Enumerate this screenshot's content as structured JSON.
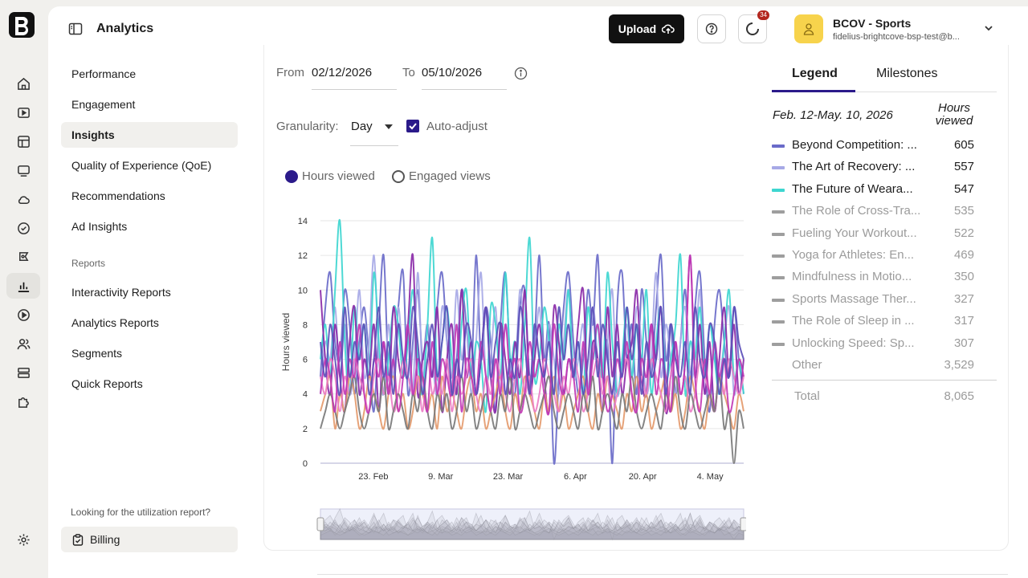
{
  "header": {
    "title": "Analytics",
    "upload_label": "Upload",
    "notification_count": "34",
    "account_name": "BCOV - Sports",
    "account_email": "fidelius-brightcove-bsp-test@b..."
  },
  "subnav": {
    "items": [
      {
        "label": "Performance"
      },
      {
        "label": "Engagement"
      },
      {
        "label": "Insights"
      },
      {
        "label": "Quality of Experience (QoE)"
      },
      {
        "label": "Recommendations"
      },
      {
        "label": "Ad Insights"
      }
    ],
    "reports_heading": "Reports",
    "report_items": [
      {
        "label": "Interactivity Reports"
      },
      {
        "label": "Analytics Reports"
      },
      {
        "label": "Segments"
      },
      {
        "label": "Quick Reports"
      }
    ],
    "utilization_text": "Looking for the utilization report?",
    "billing_label": "Billing"
  },
  "filters": {
    "from_label": "From",
    "from_value": "02/12/2026",
    "to_label": "To",
    "to_value": "05/10/2026",
    "granularity_label": "Granularity:",
    "granularity_value": "Day",
    "auto_adjust_label": "Auto-adjust",
    "auto_adjust_checked": true,
    "metric_options": [
      "Hours viewed",
      "Engaged views"
    ],
    "metric_selected": "Hours viewed"
  },
  "legend_panel": {
    "tabs": [
      "Legend",
      "Milestones"
    ],
    "period": "Feb. 12-May. 10, 2026",
    "column_header": "Hours viewed",
    "rows": [
      {
        "name": "Beyond Competition: The Mindset of Elite Athletes",
        "display": "Beyond Competition: ...",
        "value": "605",
        "color": "#6a6bc9",
        "active": true
      },
      {
        "name": "The Art of Recovery",
        "display": "The Art of Recovery: ...",
        "value": "557",
        "color": "#a7a9e6",
        "active": true
      },
      {
        "name": "The Future of Wearables",
        "display": "The Future of Weara...",
        "value": "547",
        "color": "#3ed6d0",
        "active": true
      },
      {
        "name": "The Role of Cross-Training",
        "display": "The Role of Cross-Tra...",
        "value": "535",
        "color": "#9e9e9e",
        "active": false
      },
      {
        "name": "Fueling Your Workout",
        "display": "Fueling Your Workout...",
        "value": "522",
        "color": "#9e9e9e",
        "active": false
      },
      {
        "name": "Yoga for Athletes: Enhancing Flexibility",
        "display": "Yoga for Athletes: En...",
        "value": "469",
        "color": "#9e9e9e",
        "active": false
      },
      {
        "name": "Mindfulness in Motion",
        "display": "Mindfulness in Motio...",
        "value": "350",
        "color": "#9e9e9e",
        "active": false
      },
      {
        "name": "Sports Massage Therapy",
        "display": "Sports Massage Ther...",
        "value": "327",
        "color": "#9e9e9e",
        "active": false
      },
      {
        "name": "The Role of Sleep in Recovery",
        "display": "The Role of Sleep in ...",
        "value": "317",
        "color": "#9e9e9e",
        "active": false
      },
      {
        "name": "Unlocking Speed: Sprint Training",
        "display": "Unlocking Speed: Sp...",
        "value": "307",
        "color": "#9e9e9e",
        "active": false
      },
      {
        "name": "Other",
        "display": "Other",
        "value": "3,529",
        "color": "",
        "active": false
      }
    ],
    "total_label": "Total",
    "total_value": "8,065"
  },
  "chart_data": {
    "type": "line",
    "ylabel": "Hours viewed",
    "ylim": [
      0,
      14
    ],
    "yticks": [
      0,
      2,
      4,
      6,
      8,
      10,
      12,
      14
    ],
    "xticks": [
      "23. Feb",
      "9. Mar",
      "23. Mar",
      "6. Apr",
      "20. Apr",
      "4. May"
    ],
    "x_range": [
      "2026-02-12",
      "2026-05-10"
    ],
    "granularity": "Day",
    "series": [
      {
        "name": "Beyond Competition: ...",
        "color": "#6a6bc9",
        "values": [
          5,
          9,
          11,
          7,
          6,
          10,
          8,
          4,
          7,
          9,
          6,
          3,
          8,
          12,
          5,
          6,
          9,
          11,
          4,
          7,
          10,
          6,
          8,
          5,
          9,
          11,
          7,
          4,
          6,
          10,
          8,
          5,
          12,
          6,
          9,
          7,
          3,
          8,
          11,
          6,
          4,
          9,
          10,
          5,
          7,
          12,
          6,
          8,
          0,
          5,
          9,
          11,
          7,
          4,
          6,
          10,
          8,
          12,
          5,
          7,
          0,
          9,
          11,
          6,
          8,
          4,
          10,
          7,
          5,
          9,
          12,
          6,
          8,
          4,
          7,
          10,
          5,
          9,
          11,
          6,
          3,
          8,
          10,
          7,
          5,
          9,
          6,
          4
        ]
      },
      {
        "name": "The Art of Recovery: ...",
        "color": "#a7a9e6",
        "values": [
          4,
          7,
          6,
          9,
          5,
          8,
          4,
          6,
          10,
          5,
          7,
          12,
          6,
          4,
          8,
          5,
          9,
          6,
          7,
          4,
          11,
          5,
          8,
          6,
          4,
          9,
          7,
          5,
          10,
          6,
          8,
          4,
          7,
          11,
          5,
          6,
          9,
          4,
          8,
          6,
          5,
          10,
          7,
          4,
          6,
          9,
          5,
          8,
          6,
          4,
          7,
          10,
          5,
          6,
          8,
          4,
          9,
          6,
          5,
          7,
          10,
          4,
          6,
          8,
          5,
          9,
          7,
          4,
          6,
          11,
          5,
          8,
          6,
          4,
          7,
          9,
          5,
          6,
          10,
          4,
          8,
          6,
          5,
          7,
          9,
          4,
          6,
          5
        ]
      },
      {
        "name": "The Future of Weara...",
        "color": "#3ed6d0",
        "values": [
          6,
          8,
          5,
          10,
          14,
          7,
          4,
          9,
          6,
          8,
          5,
          11,
          7,
          4,
          6,
          9,
          8,
          5,
          7,
          10,
          6,
          4,
          8,
          13,
          5,
          7,
          9,
          6,
          4,
          8,
          10,
          5,
          7,
          6,
          3,
          9,
          8,
          5,
          11,
          6,
          7,
          4,
          8,
          13,
          5,
          6,
          9,
          7,
          4,
          8,
          6,
          10,
          5,
          7,
          4,
          9,
          6,
          8,
          5,
          11,
          7,
          4,
          6,
          9,
          5,
          8,
          6,
          10,
          4,
          7,
          9,
          5,
          6,
          8,
          12,
          4,
          7,
          6,
          9,
          5,
          8,
          6,
          4,
          7,
          10,
          5,
          6,
          4
        ]
      },
      {
        "name": "Cross",
        "color": "#8a2aa8",
        "values": [
          10,
          6,
          4,
          8,
          5,
          3,
          7,
          9,
          4,
          6,
          5,
          8,
          3,
          7,
          4,
          9,
          6,
          5,
          8,
          12,
          4,
          6,
          7,
          5,
          9,
          3,
          6,
          8,
          4,
          10,
          5,
          7,
          4,
          6,
          9,
          5,
          3,
          8,
          6,
          4,
          7,
          5,
          10,
          4,
          6,
          8,
          5,
          3,
          9,
          7,
          4,
          6,
          5,
          8,
          10,
          4,
          7,
          6,
          3,
          9,
          5,
          8,
          4,
          6,
          7,
          10,
          5,
          4,
          8,
          6,
          9,
          3,
          5,
          7,
          4,
          6,
          12,
          5,
          8,
          4,
          7,
          3,
          6,
          9,
          5,
          8,
          4,
          6
        ]
      },
      {
        "name": "Fueling",
        "color": "#e49a6c",
        "values": [
          3,
          4,
          5,
          2,
          4,
          3,
          5,
          4,
          2,
          3,
          5,
          4,
          3,
          2,
          4,
          5,
          3,
          4,
          2,
          3,
          5,
          4,
          3,
          4,
          2,
          5,
          3,
          4,
          3,
          2,
          4,
          5,
          3,
          4,
          2,
          3,
          4,
          5,
          3,
          2,
          4,
          3,
          5,
          4,
          3,
          2,
          4,
          3,
          5,
          3,
          4,
          2,
          3,
          4,
          5,
          3,
          2,
          4,
          3,
          5,
          4,
          3,
          2,
          4,
          3,
          5,
          3,
          4,
          2,
          3,
          4,
          5,
          3,
          4,
          2,
          3,
          5,
          4,
          3,
          2,
          4,
          3,
          5,
          4,
          3,
          2,
          4,
          3
        ]
      },
      {
        "name": "Yoga",
        "color": "#ec7ec5",
        "values": [
          5,
          4,
          6,
          5,
          3,
          5,
          4,
          6,
          5,
          4,
          3,
          5,
          6,
          4,
          5,
          3,
          4,
          6,
          5,
          4,
          5,
          3,
          6,
          4,
          5,
          4,
          6,
          3,
          5,
          4,
          5,
          6,
          4,
          3,
          5,
          4,
          6,
          5,
          4,
          3,
          5,
          6,
          4,
          5,
          3,
          4,
          6,
          5,
          4,
          3,
          5,
          4,
          6,
          5,
          3,
          4,
          5,
          6,
          4,
          5,
          3,
          4,
          5,
          6,
          4,
          3,
          5,
          4,
          6,
          5,
          4,
          3,
          5,
          6,
          4,
          5,
          3,
          4,
          6,
          5,
          4,
          3,
          5,
          4,
          6,
          5,
          4,
          5
        ]
      },
      {
        "name": "Mindfulness",
        "color": "#7a7a7a",
        "values": [
          2,
          3,
          4,
          3,
          2,
          3,
          4,
          5,
          3,
          2,
          3,
          4,
          3,
          5,
          2,
          3,
          4,
          3,
          2,
          4,
          3,
          5,
          3,
          2,
          4,
          3,
          4,
          2,
          3,
          5,
          3,
          4,
          2,
          3,
          4,
          3,
          2,
          4,
          3,
          5,
          2,
          3,
          4,
          3,
          2,
          3,
          4,
          5,
          3,
          2,
          3,
          4,
          3,
          2,
          4,
          3,
          5,
          2,
          3,
          4,
          3,
          2,
          4,
          3,
          5,
          3,
          2,
          3,
          4,
          3,
          2,
          4,
          3,
          5,
          3,
          2,
          4,
          3,
          2,
          3,
          4,
          3,
          5,
          2,
          3,
          0,
          3,
          2
        ]
      },
      {
        "name": "Massage",
        "color": "#c23ab5",
        "values": [
          4,
          6,
          5,
          3,
          7,
          4,
          6,
          5,
          8,
          4,
          3,
          6,
          5,
          7,
          4,
          6,
          3,
          5,
          8,
          4,
          6,
          5,
          3,
          7,
          4,
          6,
          5,
          4,
          8,
          3,
          6,
          5,
          4,
          7,
          5,
          3,
          6,
          4,
          8,
          5,
          6,
          3,
          4,
          7,
          5,
          6,
          4,
          3,
          8,
          5,
          4,
          6,
          5,
          3,
          7,
          4,
          6,
          8,
          5,
          3,
          4,
          6,
          5,
          7,
          4,
          3,
          6,
          5,
          8,
          4,
          6,
          5,
          3,
          7,
          4,
          6,
          12,
          5,
          3,
          6,
          4,
          7,
          5,
          6,
          3,
          4,
          6,
          5
        ]
      },
      {
        "name": "Sleep",
        "color": "#5c4fb8",
        "values": [
          7,
          5,
          8,
          6,
          4,
          9,
          5,
          7,
          6,
          8,
          4,
          6,
          9,
          5,
          7,
          4,
          8,
          6,
          5,
          9,
          7,
          4,
          6,
          8,
          5,
          7,
          9,
          4,
          6,
          5,
          8,
          7,
          4,
          6,
          9,
          5,
          7,
          8,
          4,
          6,
          5,
          9,
          7,
          4,
          8,
          6,
          5,
          7,
          4,
          9,
          6,
          8,
          5,
          7,
          4,
          6,
          9,
          5,
          8,
          6,
          4,
          7,
          5,
          9,
          6,
          8,
          4,
          7,
          5,
          6,
          9,
          4,
          8,
          6,
          5,
          7,
          4,
          9,
          6,
          5,
          8,
          7,
          4,
          6,
          5,
          9,
          7,
          6
        ]
      }
    ]
  }
}
